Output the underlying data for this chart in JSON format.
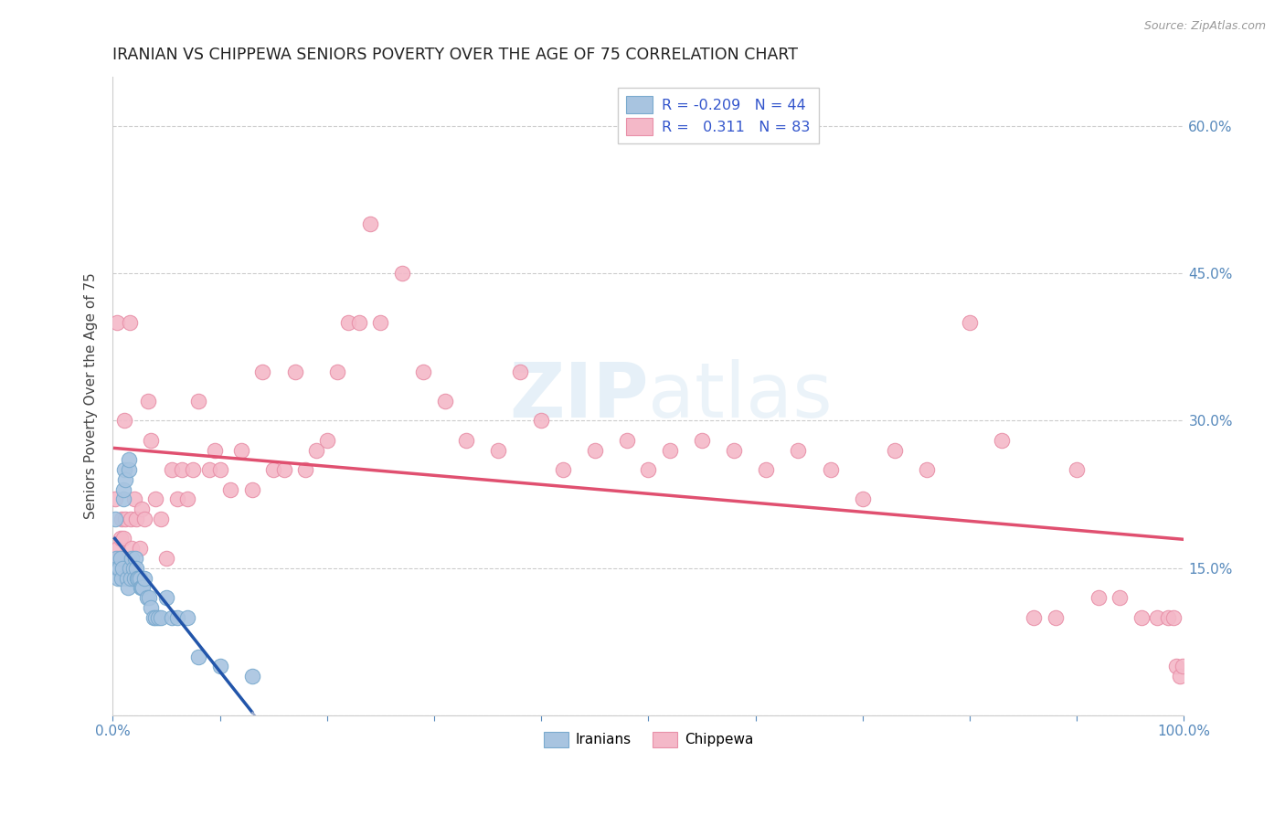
{
  "title": "IRANIAN VS CHIPPEWA SENIORS POVERTY OVER THE AGE OF 75 CORRELATION CHART",
  "source": "Source: ZipAtlas.com",
  "ylabel": "Seniors Poverty Over the Age of 75",
  "xlim": [
    0,
    1.0
  ],
  "ylim": [
    0,
    0.65
  ],
  "x_ticks": [
    0.0,
    0.1,
    0.2,
    0.3,
    0.4,
    0.5,
    0.6,
    0.7,
    0.8,
    0.9,
    1.0
  ],
  "x_tick_labels": [
    "0.0%",
    "",
    "",
    "",
    "",
    "",
    "",
    "",
    "",
    "",
    "100.0%"
  ],
  "y_ticks": [
    0.0,
    0.15,
    0.3,
    0.45,
    0.6
  ],
  "y_tick_labels": [
    "",
    "15.0%",
    "30.0%",
    "45.0%",
    "60.0%"
  ],
  "iranian_color": "#a8c4e0",
  "iranian_edge_color": "#7aaace",
  "chippewa_color": "#f4b8c8",
  "chippewa_edge_color": "#e890a8",
  "iranian_R": -0.209,
  "iranian_N": 44,
  "chippewa_R": 0.311,
  "chippewa_N": 83,
  "legend_label_iranian": "Iranians",
  "legend_label_chippewa": "Chippewa",
  "watermark": "ZIPatlas",
  "grid_color": "#cccccc",
  "iranians_x": [
    0.002,
    0.003,
    0.004,
    0.005,
    0.006,
    0.007,
    0.008,
    0.009,
    0.01,
    0.01,
    0.011,
    0.012,
    0.013,
    0.014,
    0.015,
    0.015,
    0.016,
    0.017,
    0.018,
    0.019,
    0.02,
    0.021,
    0.022,
    0.023,
    0.024,
    0.025,
    0.026,
    0.027,
    0.028,
    0.03,
    0.032,
    0.034,
    0.036,
    0.038,
    0.04,
    0.042,
    0.045,
    0.05,
    0.055,
    0.06,
    0.07,
    0.08,
    0.1,
    0.13
  ],
  "iranians_y": [
    0.2,
    0.16,
    0.15,
    0.14,
    0.15,
    0.16,
    0.14,
    0.15,
    0.22,
    0.23,
    0.25,
    0.24,
    0.14,
    0.13,
    0.25,
    0.26,
    0.15,
    0.14,
    0.16,
    0.15,
    0.14,
    0.16,
    0.15,
    0.14,
    0.14,
    0.14,
    0.13,
    0.13,
    0.13,
    0.14,
    0.12,
    0.12,
    0.11,
    0.1,
    0.1,
    0.1,
    0.1,
    0.12,
    0.1,
    0.1,
    0.1,
    0.06,
    0.05,
    0.04
  ],
  "chippewa_x": [
    0.002,
    0.004,
    0.005,
    0.006,
    0.007,
    0.008,
    0.009,
    0.01,
    0.011,
    0.012,
    0.013,
    0.015,
    0.016,
    0.017,
    0.018,
    0.02,
    0.022,
    0.025,
    0.027,
    0.03,
    0.033,
    0.036,
    0.04,
    0.045,
    0.05,
    0.055,
    0.06,
    0.065,
    0.07,
    0.075,
    0.08,
    0.09,
    0.095,
    0.1,
    0.11,
    0.12,
    0.13,
    0.14,
    0.15,
    0.16,
    0.17,
    0.18,
    0.19,
    0.2,
    0.21,
    0.22,
    0.23,
    0.24,
    0.25,
    0.27,
    0.29,
    0.31,
    0.33,
    0.36,
    0.38,
    0.4,
    0.42,
    0.45,
    0.48,
    0.5,
    0.52,
    0.55,
    0.58,
    0.61,
    0.64,
    0.67,
    0.7,
    0.73,
    0.76,
    0.8,
    0.83,
    0.86,
    0.88,
    0.9,
    0.92,
    0.94,
    0.96,
    0.975,
    0.985,
    0.99,
    0.993,
    0.996,
    0.999
  ],
  "chippewa_y": [
    0.22,
    0.4,
    0.17,
    0.16,
    0.18,
    0.2,
    0.16,
    0.18,
    0.3,
    0.2,
    0.15,
    0.16,
    0.4,
    0.2,
    0.17,
    0.22,
    0.2,
    0.17,
    0.21,
    0.2,
    0.32,
    0.28,
    0.22,
    0.2,
    0.16,
    0.25,
    0.22,
    0.25,
    0.22,
    0.25,
    0.32,
    0.25,
    0.27,
    0.25,
    0.23,
    0.27,
    0.23,
    0.35,
    0.25,
    0.25,
    0.35,
    0.25,
    0.27,
    0.28,
    0.35,
    0.4,
    0.4,
    0.5,
    0.4,
    0.45,
    0.35,
    0.32,
    0.28,
    0.27,
    0.35,
    0.3,
    0.25,
    0.27,
    0.28,
    0.25,
    0.27,
    0.28,
    0.27,
    0.25,
    0.27,
    0.25,
    0.22,
    0.27,
    0.25,
    0.4,
    0.28,
    0.1,
    0.1,
    0.25,
    0.12,
    0.12,
    0.1,
    0.1,
    0.1,
    0.1,
    0.05,
    0.04,
    0.05
  ]
}
